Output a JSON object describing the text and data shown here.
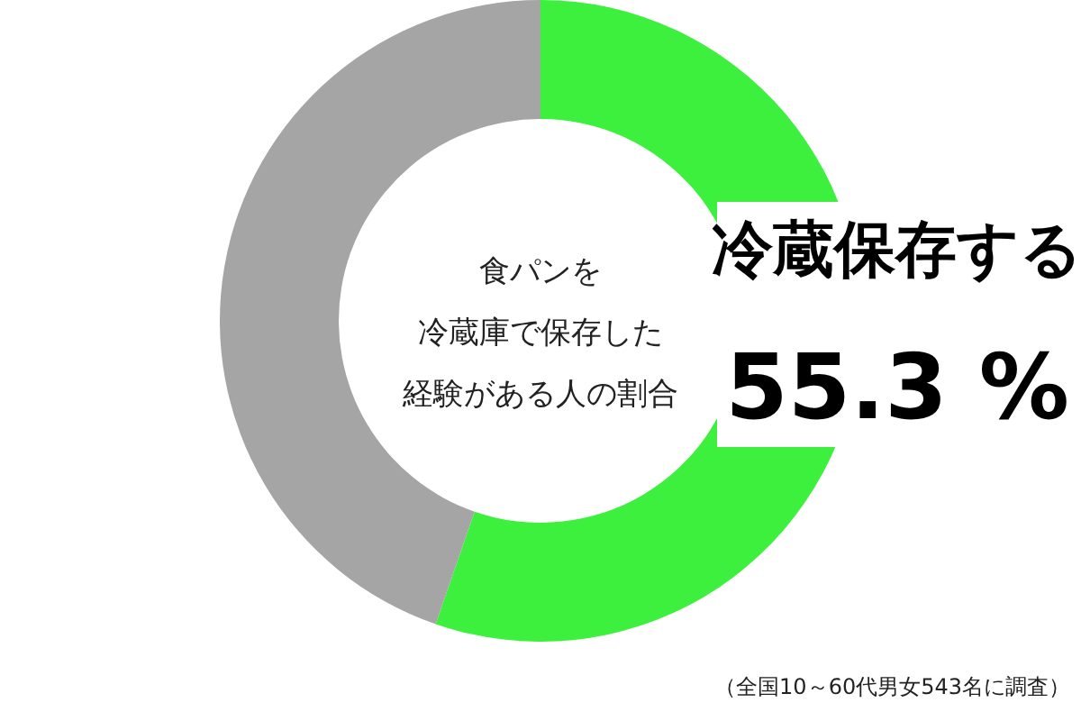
{
  "chart_data": {
    "type": "donut",
    "title": "食パンを冷蔵庫で保存した経験がある人の割合",
    "categories": [
      "冷蔵保存する",
      null
    ],
    "values": [
      55.3,
      44.7
    ],
    "colors": [
      "#3ef03e",
      "#a5a5a5"
    ],
    "value_labels": [
      "55.3 %",
      null
    ],
    "annotations": [
      "（全国10～60代男女543名に調査）"
    ]
  }
}
